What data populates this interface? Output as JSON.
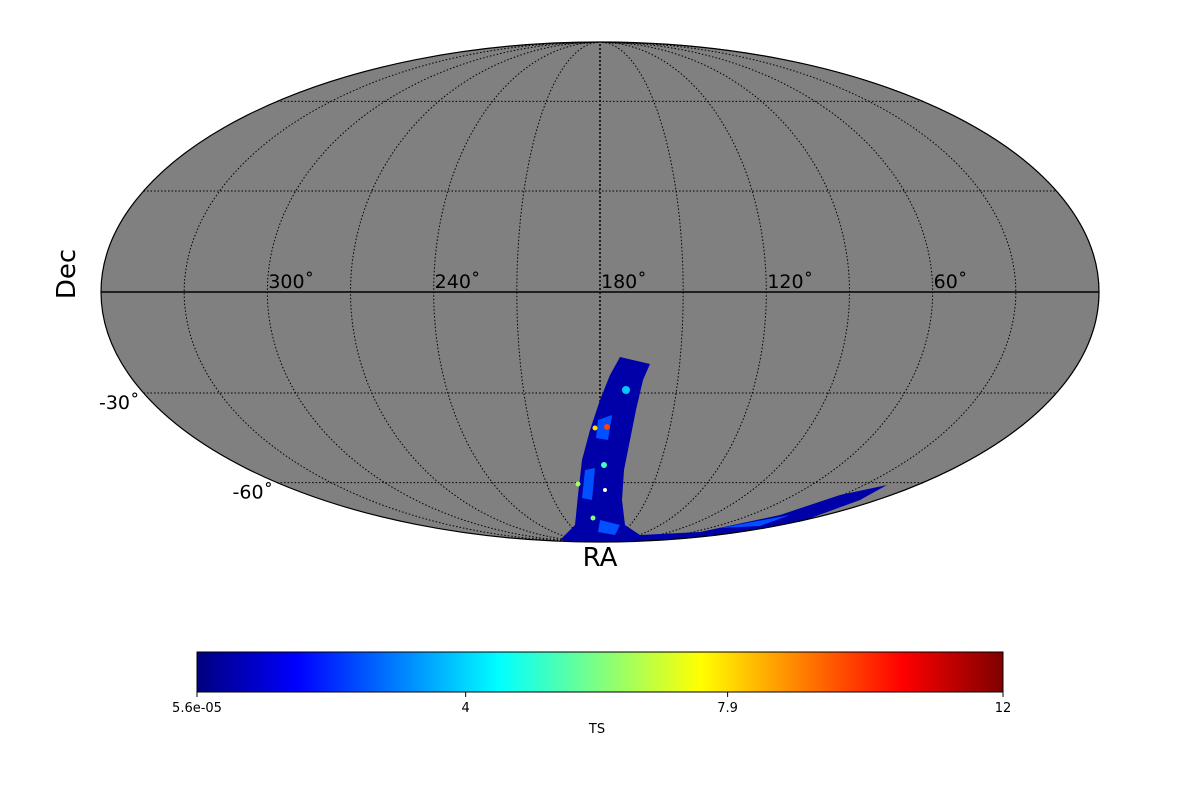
{
  "chart_data": {
    "type": "mollweide",
    "xlabel": "RA",
    "ylabel": "Dec",
    "xticks": [
      {
        "value": 300,
        "label": "300˚"
      },
      {
        "value": 240,
        "label": "240˚"
      },
      {
        "value": 180,
        "label": "180˚"
      },
      {
        "value": 120,
        "label": "120˚"
      },
      {
        "value": 60,
        "label": "60˚"
      }
    ],
    "yticks": [
      {
        "value": -30,
        "label": "-30˚"
      },
      {
        "value": -60,
        "label": "-60˚"
      }
    ],
    "colorbar": {
      "label": "TS",
      "colormap": "jet",
      "clim": [
        5.6e-05,
        12
      ],
      "ticks": [
        {
          "value": 5.6e-05,
          "label": "5.6e-05"
        },
        4,
        7.9,
        12
      ]
    },
    "background_color": "#808080",
    "grid": true
  }
}
